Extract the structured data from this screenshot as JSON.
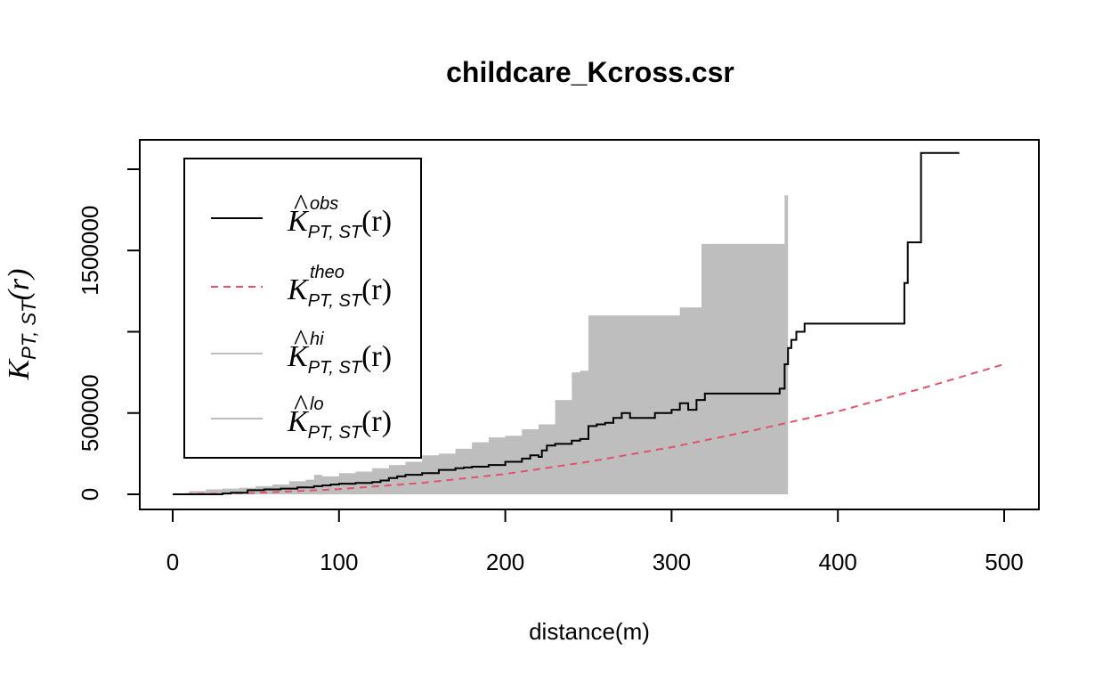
{
  "chart_data": {
    "type": "line",
    "title": "childcare_Kcross.csr",
    "xlabel": "distance(m)",
    "ylabel": {
      "main": "K",
      "sub": "PT, ST",
      "arg": "(r)"
    },
    "xlim": [
      0,
      500
    ],
    "ylim": [
      0,
      2000000
    ],
    "xticks": [
      "0",
      "100",
      "200",
      "300",
      "400",
      "500"
    ],
    "xtick_values": [
      0,
      100,
      200,
      300,
      400,
      500
    ],
    "yticks": [
      "0",
      "500000",
      "1500000"
    ],
    "ytick_values": [
      0,
      500000,
      1500000
    ],
    "ytick_marks": [
      0,
      500000,
      1000000,
      1500000,
      2000000
    ],
    "legend_position": "top-left",
    "series": [
      {
        "name": "obs",
        "legend": {
          "sup": "obs",
          "sub": "PT, ST",
          "arg": "(r)",
          "hat": true
        },
        "style": "solid",
        "color": "#000000",
        "x": [
          0,
          30,
          35,
          45,
          55,
          65,
          75,
          85,
          90,
          95,
          100,
          110,
          120,
          125,
          130,
          135,
          140,
          150,
          160,
          170,
          175,
          180,
          190,
          200,
          210,
          215,
          220,
          222,
          225,
          230,
          240,
          245,
          250,
          255,
          260,
          265,
          270,
          275,
          280,
          290,
          300,
          305,
          310,
          315,
          320,
          330,
          340,
          350,
          360,
          365,
          368,
          370,
          372,
          375,
          380,
          400,
          420,
          438,
          440,
          442,
          445,
          448,
          450,
          460,
          473
        ],
        "y": [
          0,
          5000,
          10000,
          25000,
          30000,
          35000,
          42000,
          50000,
          55000,
          60000,
          65000,
          70000,
          75000,
          85000,
          100000,
          110000,
          120000,
          130000,
          150000,
          160000,
          165000,
          170000,
          180000,
          200000,
          220000,
          240000,
          230000,
          270000,
          300000,
          310000,
          330000,
          340000,
          420000,
          430000,
          440000,
          470000,
          500000,
          470000,
          470000,
          500000,
          520000,
          560000,
          520000,
          580000,
          620000,
          620000,
          620000,
          620000,
          620000,
          650000,
          800000,
          900000,
          950000,
          1000000,
          1050000,
          1050000,
          1050000,
          1050000,
          1300000,
          1550000,
          1550000,
          1550000,
          2100000,
          2100000,
          2100000
        ]
      },
      {
        "name": "theo",
        "legend": {
          "sup": "theo",
          "sub": "PT, ST",
          "arg": "(r)",
          "hat": false
        },
        "style": "dashed",
        "color": "#DF536B",
        "x": [
          0,
          50,
          100,
          150,
          200,
          250,
          300,
          350,
          400,
          450,
          500
        ],
        "y": [
          0,
          8000,
          32000,
          70000,
          125000,
          200000,
          290000,
          395000,
          510000,
          650000,
          800000
        ]
      },
      {
        "name": "hi",
        "legend": {
          "sup": "hi",
          "sub": "PT, ST",
          "arg": "(r)",
          "hat": true
        },
        "style": "band",
        "color": "#BEBEBE",
        "x": [
          0,
          10,
          20,
          30,
          40,
          50,
          60,
          70,
          80,
          85,
          90,
          100,
          110,
          120,
          130,
          140,
          150,
          160,
          170,
          180,
          190,
          200,
          210,
          220,
          230,
          240,
          245,
          250,
          255,
          260,
          270,
          280,
          290,
          300,
          305,
          310,
          315,
          318,
          320,
          330,
          340,
          350,
          355,
          360,
          365,
          368,
          370
        ],
        "y": [
          0,
          20000,
          30000,
          35000,
          40000,
          50000,
          60000,
          80000,
          90000,
          120000,
          110000,
          130000,
          140000,
          160000,
          180000,
          200000,
          240000,
          250000,
          280000,
          320000,
          350000,
          360000,
          400000,
          430000,
          580000,
          750000,
          760000,
          1100000,
          1100000,
          1100000,
          1100000,
          1100000,
          1100000,
          1100000,
          1150000,
          1150000,
          1150000,
          1540000,
          1540000,
          1540000,
          1540000,
          1540000,
          1540000,
          1540000,
          1540000,
          1840000,
          1840000
        ]
      },
      {
        "name": "lo",
        "legend": {
          "sup": "lo",
          "sub": "PT, ST",
          "arg": "(r)",
          "hat": true
        },
        "style": "band",
        "color": "#BEBEBE",
        "x": [
          0,
          370
        ],
        "y": [
          0,
          0
        ]
      }
    ]
  }
}
